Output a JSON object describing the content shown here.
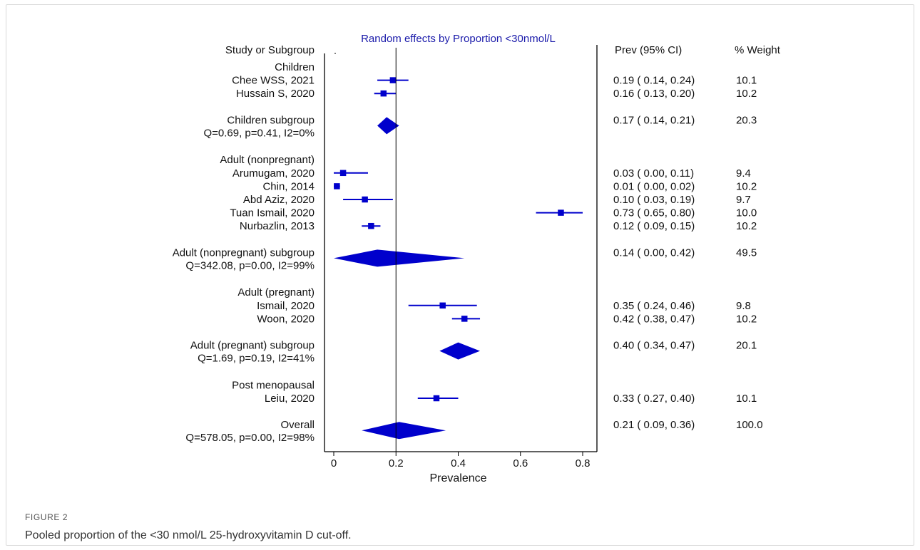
{
  "figure": {
    "label": "FIGURE 2",
    "caption": "Pooled proportion of the <30 nmol/L 25-hydroxyvitamin D cut-off."
  },
  "chart_data": {
    "type": "forest",
    "title": "Random effects by Proportion <30nmol/L",
    "xlabel": "Prevalence",
    "xlim": [
      0,
      0.8
    ],
    "xticks": [
      0,
      0.2,
      0.4,
      0.6,
      0.8
    ],
    "xtick_labels": [
      "0",
      "0.2",
      "0.4",
      "0.6",
      "0.8"
    ],
    "reference_line": 0.2,
    "col_headers": {
      "study": "Study or Subgroup",
      "prev": "Prev (95% CI)",
      "weight": "% Weight"
    },
    "rows": [
      {
        "kind": "header",
        "label": "Children"
      },
      {
        "kind": "study",
        "label": "Chee WSS, 2021",
        "est": 0.19,
        "lo": 0.14,
        "hi": 0.24,
        "weight": 10.1,
        "ci_text": "0.19  ( 0.14,  0.24)",
        "weight_text": "10.1"
      },
      {
        "kind": "study",
        "label": "Hussain S, 2020",
        "est": 0.16,
        "lo": 0.13,
        "hi": 0.2,
        "weight": 10.2,
        "ci_text": "0.16  ( 0.13,  0.20)",
        "weight_text": "10.2"
      },
      {
        "kind": "spacer"
      },
      {
        "kind": "subtotal",
        "label": "Children subgroup",
        "stat": "Q=0.69, p=0.41, I2=0%",
        "est": 0.17,
        "lo": 0.14,
        "hi": 0.21,
        "weight": 20.3,
        "ci_text": "0.17  ( 0.14,  0.21)",
        "weight_text": "20.3"
      },
      {
        "kind": "spacer"
      },
      {
        "kind": "header",
        "label": "Adult (nonpregnant)"
      },
      {
        "kind": "study",
        "label": "Arumugam, 2020",
        "est": 0.03,
        "lo": 0.0,
        "hi": 0.11,
        "weight": 9.4,
        "ci_text": "0.03  ( 0.00,  0.11)",
        "weight_text": "9.4"
      },
      {
        "kind": "study",
        "label": "Chin, 2014",
        "est": 0.01,
        "lo": 0.0,
        "hi": 0.02,
        "weight": 10.2,
        "ci_text": "0.01  ( 0.00,  0.02)",
        "weight_text": "10.2"
      },
      {
        "kind": "study",
        "label": "Abd Aziz, 2020",
        "est": 0.1,
        "lo": 0.03,
        "hi": 0.19,
        "weight": 9.7,
        "ci_text": "0.10  ( 0.03,  0.19)",
        "weight_text": "9.7"
      },
      {
        "kind": "study",
        "label": "Tuan Ismail, 2020",
        "est": 0.73,
        "lo": 0.65,
        "hi": 0.8,
        "weight": 10.0,
        "ci_text": "0.73  ( 0.65,  0.80)",
        "weight_text": "10.0"
      },
      {
        "kind": "study",
        "label": "Nurbazlin, 2013",
        "est": 0.12,
        "lo": 0.09,
        "hi": 0.15,
        "weight": 10.2,
        "ci_text": "0.12  ( 0.09,  0.15)",
        "weight_text": "10.2"
      },
      {
        "kind": "spacer"
      },
      {
        "kind": "subtotal",
        "label": "Adult (nonpregnant) subgroup",
        "stat": "Q=342.08, p=0.00, I2=99%",
        "est": 0.14,
        "lo": 0.0,
        "hi": 0.42,
        "weight": 49.5,
        "ci_text": "0.14  ( 0.00,  0.42)",
        "weight_text": "49.5"
      },
      {
        "kind": "spacer"
      },
      {
        "kind": "header",
        "label": "Adult (pregnant)"
      },
      {
        "kind": "study",
        "label": "Ismail, 2020",
        "est": 0.35,
        "lo": 0.24,
        "hi": 0.46,
        "weight": 9.8,
        "ci_text": "0.35  ( 0.24,  0.46)",
        "weight_text": "9.8"
      },
      {
        "kind": "study",
        "label": "Woon, 2020",
        "est": 0.42,
        "lo": 0.38,
        "hi": 0.47,
        "weight": 10.2,
        "ci_text": "0.42  ( 0.38,  0.47)",
        "weight_text": "10.2"
      },
      {
        "kind": "spacer"
      },
      {
        "kind": "subtotal",
        "label": "Adult (pregnant) subgroup",
        "stat": "Q=1.69, p=0.19, I2=41%",
        "est": 0.4,
        "lo": 0.34,
        "hi": 0.47,
        "weight": 20.1,
        "ci_text": "0.40  ( 0.34,  0.47)",
        "weight_text": "20.1"
      },
      {
        "kind": "spacer"
      },
      {
        "kind": "header",
        "label": "Post menopausal"
      },
      {
        "kind": "study",
        "label": "Leiu, 2020",
        "est": 0.33,
        "lo": 0.27,
        "hi": 0.4,
        "weight": 10.1,
        "ci_text": "0.33  ( 0.27,  0.40)",
        "weight_text": "10.1"
      },
      {
        "kind": "spacer"
      },
      {
        "kind": "overall",
        "label": "Overall",
        "stat": "Q=578.05, p=0.00, I2=98%",
        "est": 0.21,
        "lo": 0.09,
        "hi": 0.36,
        "weight": 100.0,
        "ci_text": "0.21  ( 0.09,  0.36)",
        "weight_text": "100.0"
      }
    ],
    "colors": {
      "marker": "#0000cc",
      "axis": "#000000",
      "text": "#111111"
    }
  }
}
